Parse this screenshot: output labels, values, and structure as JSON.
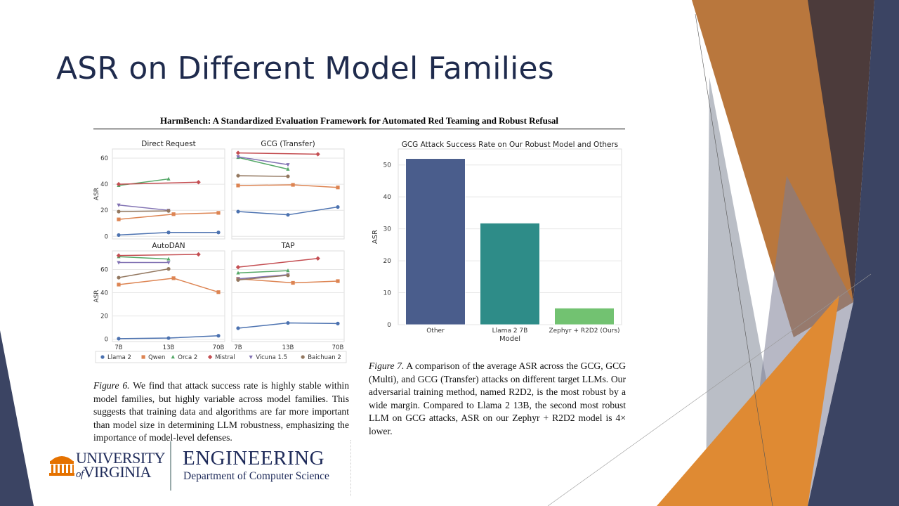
{
  "slide": {
    "title": "ASR on Different Model Families",
    "paper_header": "HarmBench: A Standardized Evaluation Framework for Automated Red Teaming and Robust Refusal",
    "figure6_label": "Figure 6.",
    "figure6_text": " We find that attack success rate is highly stable within model families, but highly variable across model families. This suggests that training data and algorithms are far more important than model size in determining LLM robustness, emphasizing the importance of model-level defenses.",
    "figure7_label": "Figure 7.",
    "figure7_text": " A comparison of the average ASR across the GCG, GCG (Multi), and GCG (Transfer) attacks on different target LLMs. Our adversarial training method, named R2D2, is the most robust by a wide margin. Compared to Llama 2 13B, the second most robust LLM on GCG attacks, ASR on our Zephyr + R2D2 model is 4× lower.",
    "logo": {
      "university_line1": "UNIVERSITY",
      "university_line2": "VIRGINIA",
      "university_of": "of",
      "engineering": "ENGINEERING",
      "department": "Department of Computer Science"
    }
  },
  "colors": {
    "title": "#1f2b4d",
    "Llama 2": "#4c72b0",
    "Qwen": "#dd8452",
    "Orca 2": "#55a868",
    "Mistral": "#c44e52",
    "Vicuna 1.5": "#8172b3",
    "Baichuan 2": "#937860",
    "bars": [
      "#4a5d8c",
      "#2e8c88",
      "#72c271"
    ],
    "uva_orange": "#e57200"
  },
  "chart_data": [
    {
      "type": "line",
      "layout": "2x2 small multiples",
      "ylabel": "ASR",
      "x_ticks": [
        "7B",
        "13B",
        "70B"
      ],
      "legend": {
        "placement": "bottom",
        "entries": [
          {
            "name": "Llama 2",
            "marker": "circle"
          },
          {
            "name": "Qwen",
            "marker": "square"
          },
          {
            "name": "Orca 2",
            "marker": "triangle-up"
          },
          {
            "name": "Mistral",
            "marker": "diamond"
          },
          {
            "name": "Vicuna 1.5",
            "marker": "triangle-down"
          },
          {
            "name": "Baichuan 2",
            "marker": "circle"
          }
        ]
      },
      "grid": true,
      "x_positions": {
        "Llama 2": [
          0,
          1,
          2
        ],
        "Qwen": [
          0,
          1.1,
          2
        ],
        "Orca 2": [
          0,
          1
        ],
        "Mistral": [
          0,
          1.6
        ],
        "Vicuna 1.5": [
          0,
          1
        ],
        "Baichuan 2": [
          0,
          1
        ]
      },
      "panels": [
        {
          "title": "Direct Request",
          "yticks": [
            0,
            20,
            40,
            60
          ],
          "ylim": [
            -2,
            67
          ],
          "series": {
            "Llama 2": [
              1,
              3,
              3
            ],
            "Qwen": [
              13,
              17,
              18
            ],
            "Orca 2": [
              39,
              44
            ],
            "Mistral": [
              40,
              41.5
            ],
            "Vicuna 1.5": [
              24,
              20
            ],
            "Baichuan 2": [
              19,
              19.5
            ]
          }
        },
        {
          "title": "GCG (Transfer)",
          "yticks": [
            0,
            20,
            40,
            60
          ],
          "ylim": [
            -2,
            67
          ],
          "series": {
            "Llama 2": [
              19,
              16.5,
              22.5
            ],
            "Qwen": [
              39,
              39.5,
              37.5
            ],
            "Orca 2": [
              60.5,
              51.5
            ],
            "Mistral": [
              64,
              63
            ],
            "Vicuna 1.5": [
              61,
              55
            ],
            "Baichuan 2": [
              46.5,
              46
            ]
          }
        },
        {
          "title": "AutoDAN",
          "yticks": [
            0,
            20,
            40,
            60
          ],
          "ylim": [
            -2,
            76
          ],
          "series": {
            "Llama 2": [
              0.5,
              1,
              3
            ],
            "Qwen": [
              47,
              52.5,
              40.5
            ],
            "Orca 2": [
              71,
              69
            ],
            "Mistral": [
              72,
              73
            ],
            "Vicuna 1.5": [
              66,
              66
            ],
            "Baichuan 2": [
              53,
              60.5
            ]
          }
        },
        {
          "title": "TAP",
          "yticks": [
            0,
            20,
            40,
            60
          ],
          "ylim": [
            -2,
            76
          ],
          "series": {
            "Llama 2": [
              9.5,
              14,
              13.5
            ],
            "Qwen": [
              52,
              48.5,
              50
            ],
            "Orca 2": [
              57,
              59
            ],
            "Mistral": [
              62,
              69.5
            ],
            "Vicuna 1.5": [
              52,
              55.5
            ],
            "Baichuan 2": [
              51,
              55
            ]
          }
        }
      ]
    },
    {
      "type": "bar",
      "title": "GCG Attack Success Rate on Our Robust Model and Others",
      "categories": [
        "Other",
        "Llama 2 7B",
        "Zephyr + R2D2 (Ours)"
      ],
      "values": [
        52,
        31.8,
        5.2
      ],
      "xlabel": "Model",
      "ylabel": "ASR",
      "yticks": [
        0,
        10,
        20,
        30,
        40,
        50
      ],
      "ylim": [
        0,
        55
      ],
      "grid": true
    }
  ]
}
